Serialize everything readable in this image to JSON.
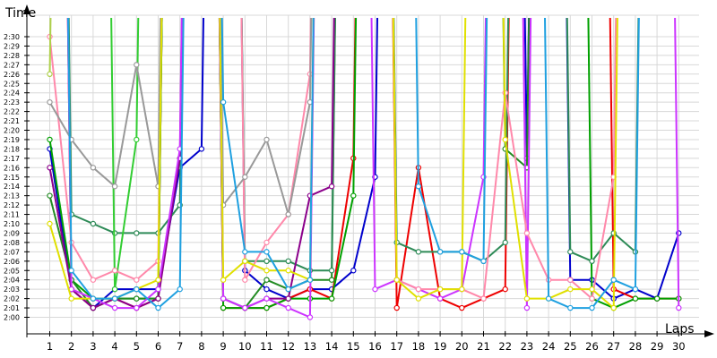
{
  "chart_data": {
    "type": "line",
    "ylabel": "Time",
    "xlabel": "Laps",
    "x": [
      1,
      2,
      3,
      4,
      5,
      6,
      7,
      8,
      9,
      10,
      11,
      12,
      13,
      14,
      15,
      16,
      17,
      18,
      19,
      20,
      21,
      22,
      23,
      24,
      25,
      26,
      27,
      28,
      29,
      30
    ],
    "y_ticks": [
      "2:00",
      "2:01",
      "2:02",
      "2:03",
      "2:04",
      "2:05",
      "2:06",
      "2:07",
      "2:08",
      "2:09",
      "2:10",
      "2:11",
      "2:12",
      "2:13",
      "2:14",
      "2:15",
      "2:16",
      "2:17",
      "2:18",
      "2:19",
      "2:20",
      "2:21",
      "2:22",
      "2:23",
      "2:24",
      "2:25",
      "2:26",
      "2:27",
      "2:28",
      "2:29",
      "2:30"
    ],
    "ylim_seconds": [
      117,
      152
    ],
    "grid": true,
    "series": [
      {
        "color": "#0000cc",
        "values": [
          138,
          123,
          121,
          123,
          123,
          123,
          136,
          138,
          300,
          125,
          123,
          122,
          123,
          123,
          125,
          135,
          300,
          300,
          300,
          300,
          300,
          300,
          137,
          300,
          124,
          124,
          122,
          123,
          122,
          129
        ]
      },
      {
        "color": "#ee0000",
        "values": [
          300,
          123,
          121,
          122,
          121,
          122,
          300,
          300,
          121,
          121,
          121,
          122,
          123,
          122,
          137,
          300,
          121,
          136,
          122,
          121,
          122,
          123,
          300,
          300,
          300,
          300,
          123,
          122,
          122,
          122
        ]
      },
      {
        "color": "#00a000",
        "values": [
          139,
          124,
          122,
          122,
          122,
          122,
          300,
          300,
          121,
          121,
          121,
          122,
          122,
          122,
          133,
          300,
          300,
          300,
          300,
          300,
          300,
          300,
          300,
          300,
          300,
          122,
          121,
          122,
          122,
          122
        ]
      },
      {
        "color": "#228b22",
        "values": [
          133,
          124,
          121,
          122,
          122,
          122,
          300,
          300,
          122,
          121,
          124,
          123,
          124,
          124,
          300,
          300,
          300,
          300,
          300,
          300,
          300,
          138,
          136,
          300,
          300,
          300,
          300,
          300,
          300,
          300
        ]
      },
      {
        "color": "#2e8b57",
        "values": [
          300,
          131,
          130,
          129,
          129,
          129,
          132,
          300,
          300,
          126,
          126,
          126,
          125,
          125,
          300,
          300,
          128,
          127,
          127,
          127,
          126,
          128,
          300,
          300,
          127,
          126,
          129,
          127,
          300,
          300
        ]
      },
      {
        "color": "#32cd32",
        "values": [
          300,
          300,
          300,
          123,
          139,
          300,
          300,
          300,
          300,
          300,
          300,
          300,
          300,
          300,
          300,
          300,
          300,
          300,
          300,
          300,
          300,
          300,
          300,
          300,
          300,
          300,
          300,
          300,
          300,
          300
        ]
      },
      {
        "color": "#ffa500",
        "values": [
          300,
          300,
          300,
          300,
          300,
          300,
          300,
          300,
          300,
          300,
          300,
          300,
          300,
          300,
          300,
          300,
          300,
          300,
          300,
          300,
          300,
          300,
          300,
          300,
          300,
          300,
          300,
          300,
          300,
          300
        ]
      },
      {
        "color": "#8b008b",
        "values": [
          136,
          123,
          121,
          122,
          121,
          122,
          137,
          300,
          122,
          121,
          122,
          122,
          133,
          134,
          300,
          300,
          300,
          300,
          300,
          300,
          300,
          300,
          300,
          300,
          300,
          300,
          300,
          300,
          300,
          300
        ]
      },
      {
        "color": "#cc33ff",
        "values": [
          300,
          123,
          122,
          121,
          121,
          123,
          138,
          300,
          122,
          121,
          122,
          121,
          120,
          300,
          300,
          123,
          124,
          123,
          122,
          123,
          135,
          300,
          121,
          300,
          300,
          300,
          300,
          300,
          300,
          121
        ]
      },
      {
        "color": "#ff88aa",
        "values": [
          150,
          128,
          124,
          125,
          124,
          126,
          300,
          300,
          300,
          124,
          128,
          131,
          146,
          300,
          300,
          300,
          124,
          123,
          123,
          123,
          122,
          144,
          129,
          124,
          124,
          122,
          135,
          300,
          300,
          300
        ]
      },
      {
        "color": "#999999",
        "values": [
          143,
          139,
          136,
          134,
          147,
          134,
          300,
          300,
          132,
          135,
          139,
          131,
          143,
          300,
          300,
          300,
          300,
          300,
          300,
          300,
          300,
          300,
          300,
          300,
          300,
          300,
          300,
          300,
          300,
          300
        ]
      },
      {
        "color": "#aed04a",
        "values": [
          146,
          300,
          300,
          300,
          300,
          300,
          300,
          300,
          300,
          300,
          300,
          300,
          300,
          300,
          300,
          300,
          300,
          300,
          300,
          300,
          300,
          300,
          300,
          300,
          300,
          300,
          300,
          300,
          300,
          300
        ]
      },
      {
        "color": "#e0e000",
        "values": [
          130,
          122,
          122,
          122,
          123,
          124,
          300,
          300,
          124,
          126,
          125,
          125,
          124,
          300,
          300,
          300,
          124,
          122,
          123,
          123,
          300,
          139,
          122,
          122,
          123,
          123,
          121,
          300,
          300,
          300
        ]
      },
      {
        "color": "#1fa0e0",
        "values": [
          300,
          125,
          122,
          122,
          123,
          121,
          123,
          300,
          143,
          127,
          127,
          123,
          124,
          300,
          300,
          300,
          300,
          134,
          127,
          127,
          126,
          300,
          300,
          122,
          121,
          121,
          124,
          123,
          300,
          300
        ]
      },
      {
        "color": "#44dddd",
        "values": [
          300,
          300,
          300,
          300,
          300,
          300,
          300,
          300,
          300,
          300,
          300,
          300,
          300,
          300,
          300,
          300,
          300,
          300,
          300,
          300,
          300,
          300,
          300,
          300,
          300,
          300,
          300,
          300,
          300,
          300
        ]
      }
    ]
  }
}
